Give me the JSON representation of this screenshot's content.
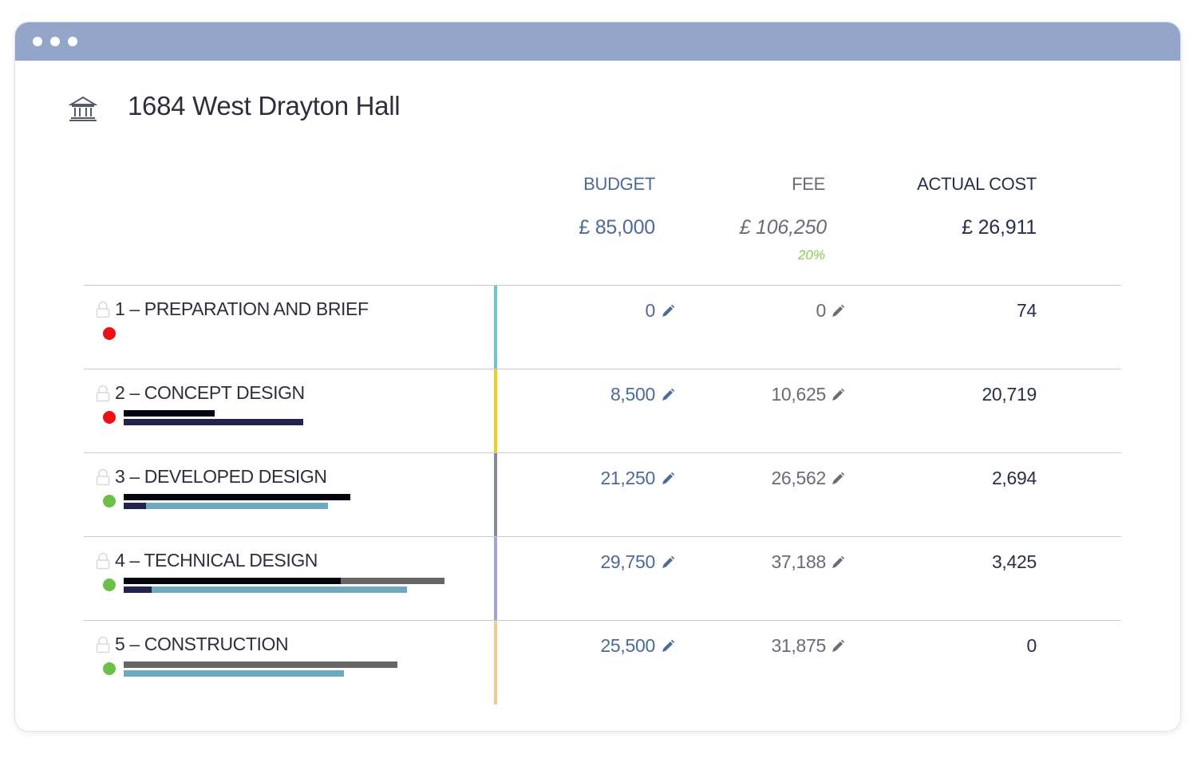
{
  "colors": {
    "titlebar": "#93a5c8",
    "budget": "#4c6a9a",
    "fee": "#6b6b78",
    "actual": "#2a2e4a",
    "fee_pct": "#8acb4f",
    "status_red": "#ee1111",
    "status_green": "#6cc04a",
    "bar_black": "#050510",
    "bar_gray": "#666666",
    "bar_navy": "#22244e",
    "bar_teal": "#6fa9bd"
  },
  "project": {
    "icon": "building-icon",
    "title": "1684 West Drayton Hall"
  },
  "columns": {
    "budget_label": "BUDGET",
    "fee_label": "FEE",
    "actual_label": "ACTUAL COST",
    "budget_total": "£ 85,000",
    "fee_total": "£ 106,250",
    "fee_percent": "20%",
    "actual_total": "£ 26,911"
  },
  "stages": [
    {
      "name": "1 – PREPARATION AND BRIEF",
      "status": "red",
      "stage_color": "#6cc8cf",
      "budget": "0",
      "fee": "0",
      "actual": "74",
      "budget_used_fraction": 0,
      "budget_gray_fraction": 0,
      "fee_used_fraction": 0,
      "fee_teal_fraction": 0
    },
    {
      "name": "2 – CONCEPT DESIGN",
      "status": "red",
      "stage_color": "#f3cc17",
      "budget": "8,500",
      "fee": "10,625",
      "actual": "20,719",
      "budget_used_fraction": 0.29,
      "budget_gray_fraction": 0,
      "fee_used_fraction": 0.57,
      "fee_teal_fraction": 0
    },
    {
      "name": "3 – DEVELOPED DESIGN",
      "status": "green",
      "stage_color": "#858a99",
      "budget": "21,250",
      "fee": "26,562",
      "actual": "2,694",
      "budget_used_fraction": 0.72,
      "budget_gray_fraction": 0,
      "fee_used_fraction": 0.07,
      "fee_teal_fraction": 0.65
    },
    {
      "name": "4 – TECHNICAL DESIGN",
      "status": "green",
      "stage_color": "#9fa6d6",
      "budget": "29,750",
      "fee": "37,188",
      "actual": "3,425",
      "budget_used_fraction": 0.69,
      "budget_gray_fraction": 1.02,
      "fee_used_fraction": 0.09,
      "fee_teal_fraction": 0.9
    },
    {
      "name": "5 – CONSTRUCTION",
      "status": "green",
      "stage_color": "#f5c98a",
      "budget": "25,500",
      "fee": "31,875",
      "actual": "0",
      "budget_used_fraction": 0,
      "budget_gray_fraction": 0.87,
      "fee_used_fraction": 0,
      "fee_teal_fraction": 0.7
    }
  ]
}
